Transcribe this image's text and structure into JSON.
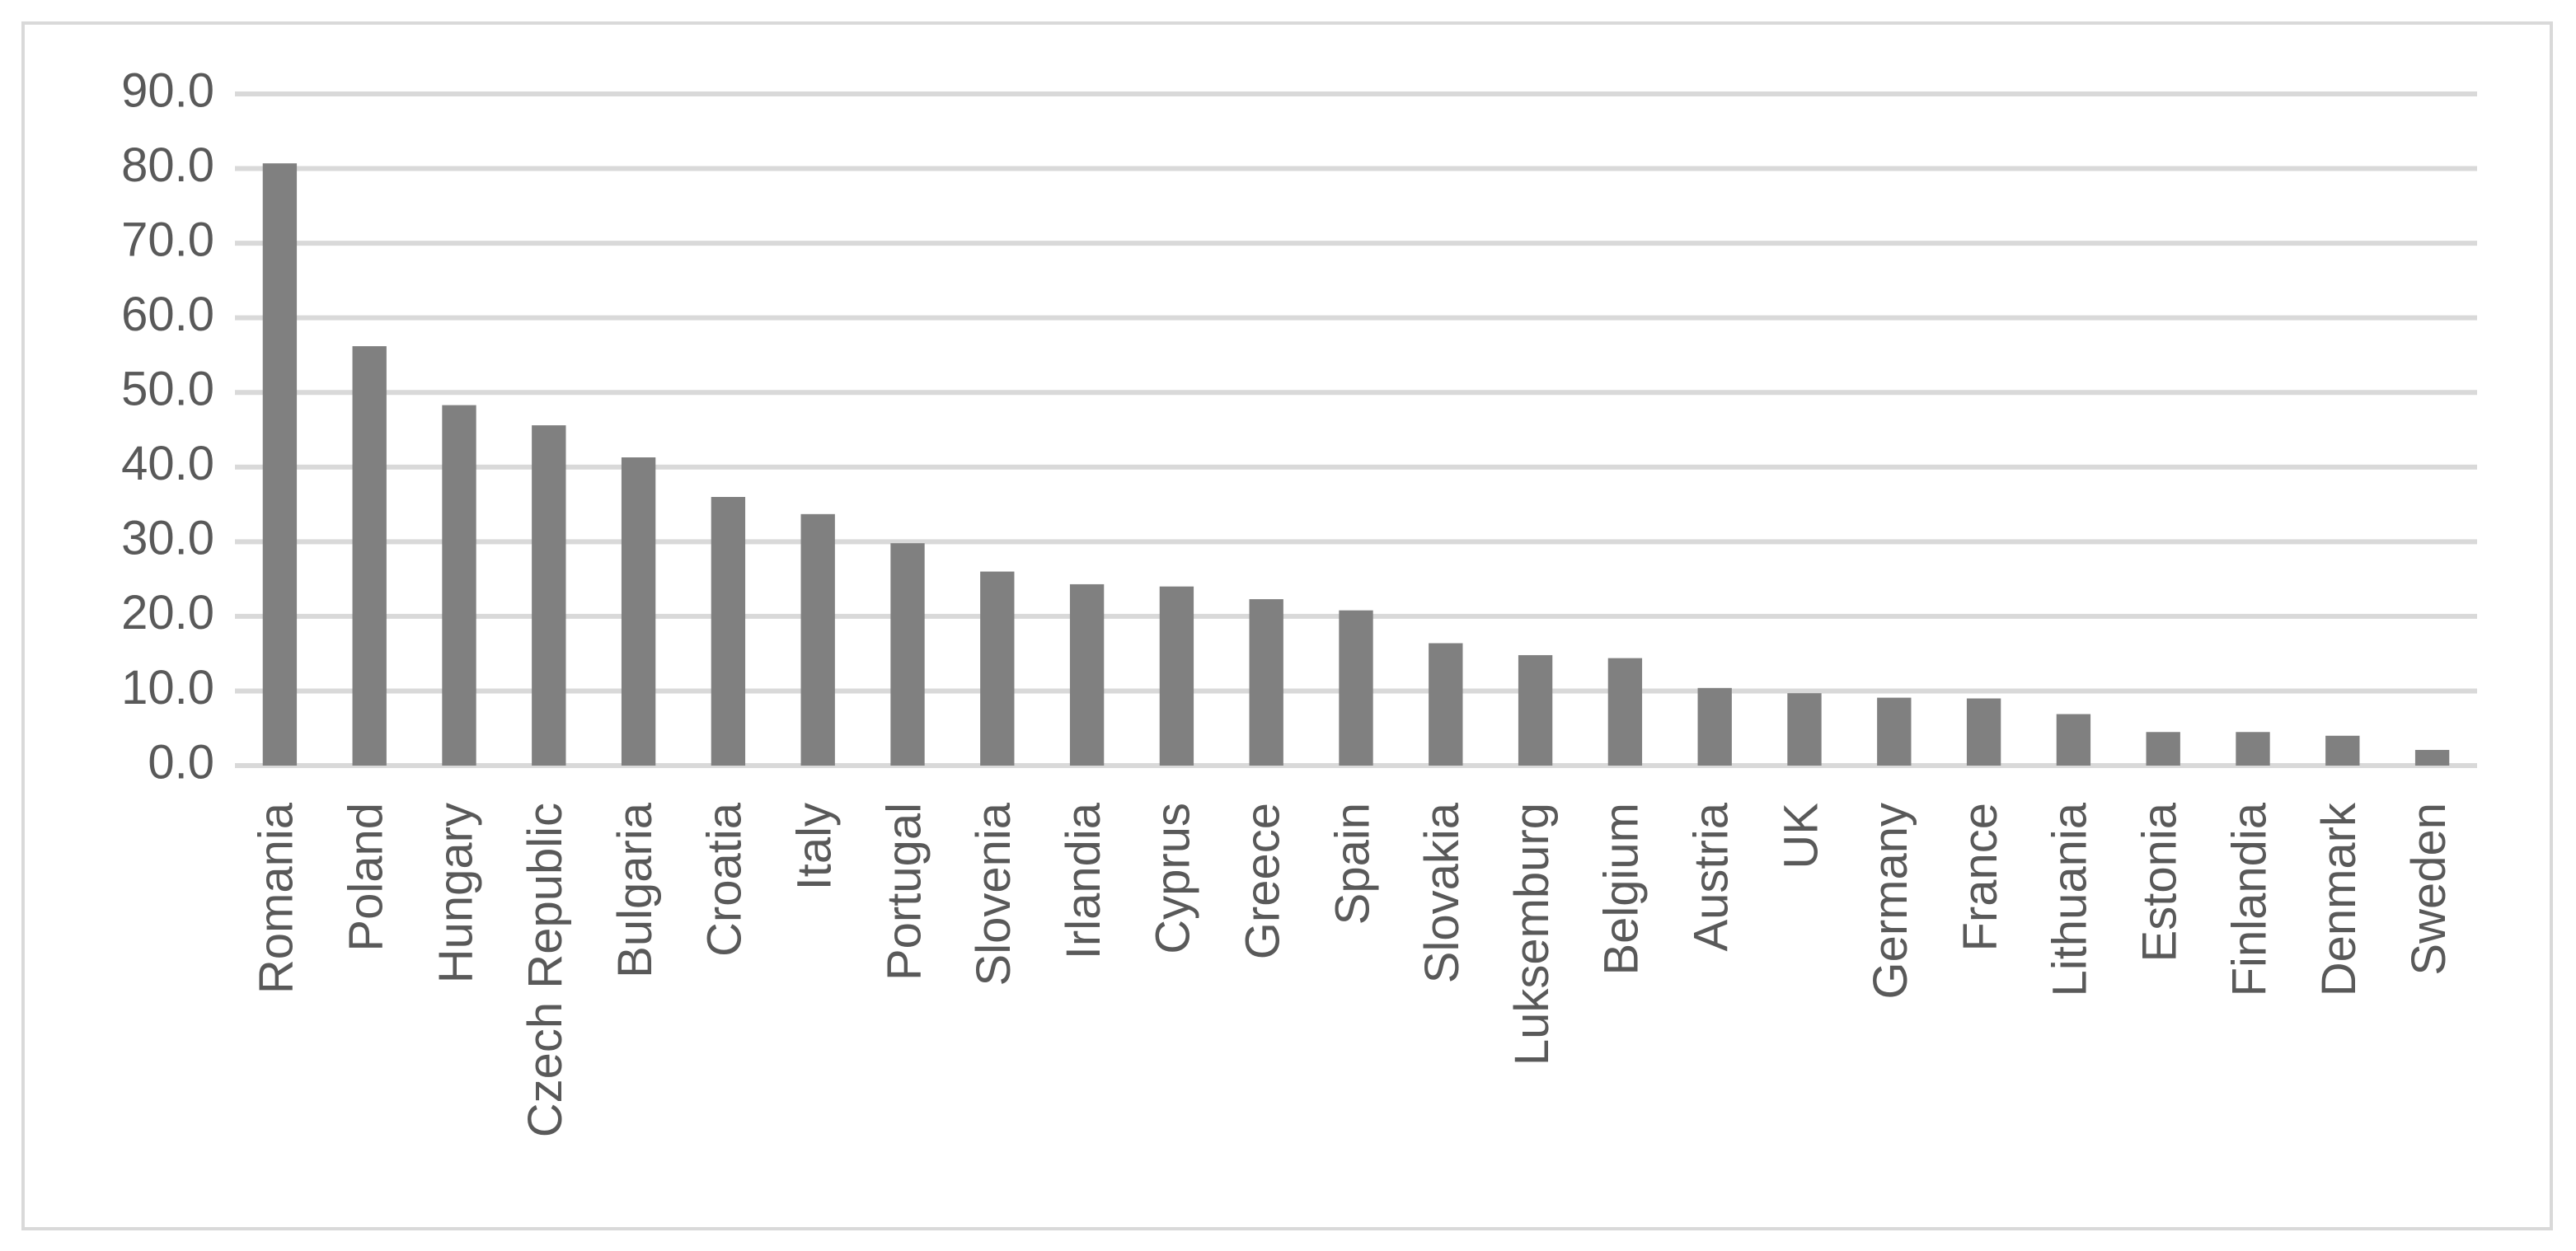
{
  "chart_data": {
    "type": "bar",
    "categories": [
      "Romania",
      "Poland",
      "Hungary",
      "Czech Republic",
      "Bulgaria",
      "Croatia",
      "Italy",
      "Portugal",
      "Slovenia",
      "Irlandia",
      "Cyprus",
      "Greece",
      "Spain",
      "Slovakia",
      "Luksemburg",
      "Belgium",
      "Austria",
      "UK",
      "Germany",
      "France",
      "Lithuania",
      "Estonia",
      "Finlandia",
      "Denmark",
      "Sweden"
    ],
    "values": [
      80.7,
      56.2,
      48.3,
      45.6,
      41.3,
      36.0,
      33.7,
      29.8,
      26.0,
      24.3,
      24.0,
      22.3,
      20.8,
      16.4,
      14.8,
      14.4,
      10.4,
      9.7,
      9.1,
      9.0,
      6.9,
      4.5,
      4.5,
      4.0,
      2.1
    ],
    "color": "#808080",
    "ylim": [
      0,
      90
    ],
    "yticks": [
      {
        "value": 0,
        "label": "0.0"
      },
      {
        "value": 10,
        "label": "10.0"
      },
      {
        "value": 20,
        "label": "20.0"
      },
      {
        "value": 30,
        "label": "30.0"
      },
      {
        "value": 40,
        "label": "40.0"
      },
      {
        "value": 50,
        "label": "50.0"
      },
      {
        "value": 60,
        "label": "60.0"
      },
      {
        "value": 70,
        "label": "70.0"
      },
      {
        "value": 80,
        "label": "80.0"
      },
      {
        "value": 90,
        "label": "90.0"
      }
    ],
    "grid": true
  }
}
